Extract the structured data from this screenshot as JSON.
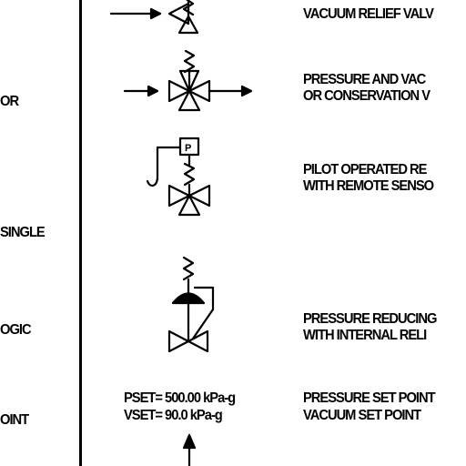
{
  "left_column": [
    "OR",
    "SINGLE",
    "OGIC",
    "OINT"
  ],
  "descriptions": [
    [
      "VACUUM RELIEF VALV"
    ],
    [
      "PRESSURE AND VAC",
      "OR CONSERVATION V"
    ],
    [
      "PILOT OPERATED RE",
      "WITH REMOTE SENSO"
    ],
    [
      "PRESSURE REDUCING",
      "WITH INTERNAL RELI"
    ],
    [
      "PRESSURE SET POINT",
      "VACUUM SET POINT"
    ]
  ],
  "setpoints": [
    "PSET= 500.00 kPa-g",
    "VSET= 90.0 kPa-g"
  ],
  "pilot_label": "P",
  "symbols": [
    "vacuum-relief-valve",
    "pressure-vacuum-valve",
    "pilot-operated-valve",
    "pressure-reducing-valve",
    "set-point-arrow"
  ]
}
